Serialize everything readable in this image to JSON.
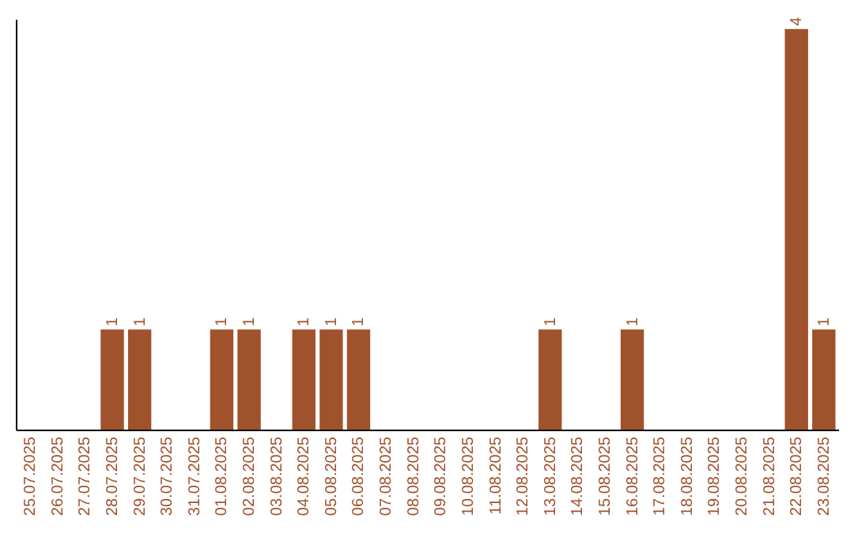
{
  "chart_data": {
    "type": "bar",
    "categories": [
      "25.07.2025",
      "26.07.2025",
      "27.07.2025",
      "28.07.2025",
      "29.07.2025",
      "30.07.2025",
      "31.07.2025",
      "01.08.2025",
      "02.08.2025",
      "03.08.2025",
      "04.08.2025",
      "05.08.2025",
      "06.08.2025",
      "07.08.2025",
      "08.08.2025",
      "09.08.2025",
      "10.08.2025",
      "11.08.2025",
      "12.08.2025",
      "13.08.2025",
      "14.08.2025",
      "15.08.2025",
      "16.08.2025",
      "17.08.2025",
      "18.08.2025",
      "19.08.2025",
      "20.08.2025",
      "21.08.2025",
      "22.08.2025",
      "23.08.2025"
    ],
    "values": [
      0,
      0,
      0,
      1,
      1,
      0,
      0,
      1,
      1,
      0,
      1,
      1,
      1,
      0,
      0,
      0,
      0,
      0,
      0,
      1,
      0,
      0,
      1,
      0,
      0,
      0,
      0,
      0,
      4,
      1
    ],
    "value_labels": [
      null,
      null,
      null,
      "1",
      "1",
      null,
      null,
      "1",
      "1",
      null,
      "1",
      "1",
      "1",
      null,
      null,
      null,
      null,
      null,
      null,
      "1",
      null,
      null,
      "1",
      null,
      null,
      null,
      null,
      null,
      "4",
      "1"
    ],
    "color": "#a0522d",
    "ylim": [
      0,
      4.1
    ],
    "tick_labels": "x"
  }
}
